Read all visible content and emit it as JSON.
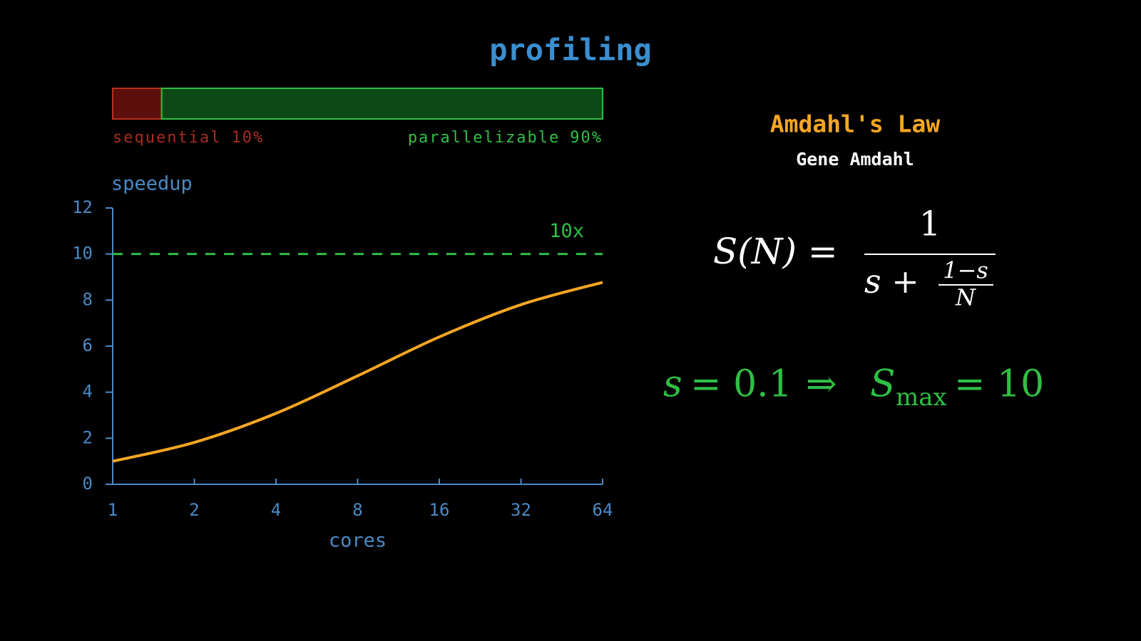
{
  "title": "profiling",
  "chart_data": [
    {
      "type": "stacked-bar",
      "orientation": "horizontal",
      "xlim": [
        0,
        100
      ],
      "series": [
        {
          "name": "sequential",
          "values": [
            10
          ],
          "value_labels": [
            "10%"
          ],
          "color": "#5c0f0b",
          "edge_color": "#b8301f",
          "label_color": "#a82c1f"
        },
        {
          "name": "parallelizable",
          "values": [
            90
          ],
          "value_labels": [
            "90%"
          ],
          "color": "#0b4a16",
          "edge_color": "#2fbf45",
          "label_color": "#2fbf45"
        }
      ]
    },
    {
      "type": "line",
      "y_label": "speedup",
      "x_label": "cores",
      "xscale": "log",
      "x": [
        1,
        2,
        4,
        8,
        16,
        32,
        64
      ],
      "values": [
        1,
        1.82,
        3.08,
        4.71,
        6.4,
        7.8,
        8.77
      ],
      "color": "#f5a623",
      "xlim": [
        1,
        64
      ],
      "xticks": [
        1,
        2,
        4,
        8,
        16,
        32,
        64
      ],
      "ylim": [
        0,
        12
      ],
      "yticks": [
        0,
        2,
        4,
        6,
        8,
        10,
        12
      ],
      "axis_color": "#4a8ac6",
      "reference_lines": [
        {
          "value": 10,
          "label": "10x",
          "color": "#2fbf45",
          "style": "dashed"
        }
      ]
    }
  ],
  "law": {
    "title": "Amdahl's Law",
    "author": "Gene Amdahl",
    "formula": {
      "lhs": "S(N) =",
      "numerator": "1",
      "denominator_start": "s +",
      "inner_numerator": "1−s",
      "inner_denominator": "N"
    },
    "result": {
      "s": "s",
      "s_value": "= 0.1",
      "implies": "⇒",
      "S": "S",
      "sub": "max",
      "S_value": "= 10"
    }
  }
}
